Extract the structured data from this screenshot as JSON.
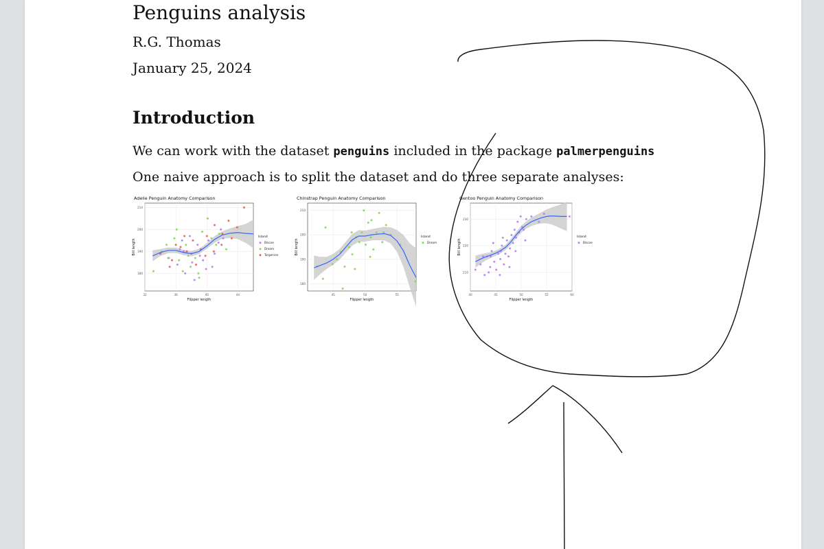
{
  "document": {
    "title": "Penguins analysis",
    "author": "R.G. Thomas",
    "date": "January 25, 2024",
    "section_heading": "Introduction",
    "paragraph1": {
      "before": "We can work with the dataset ",
      "code1": "penguins",
      "middle": " included in the package ",
      "code2": "palmerpenguins"
    },
    "paragraph2": "One naive approach is to split the dataset and do three separate analyses:"
  },
  "colors": {
    "Biscoe": "#b77ff0",
    "Dream": "#7ed957",
    "Torgersen": "#e8604c",
    "smooth_line": "#3366ff",
    "ribbon": "#cccccc",
    "annotation_ink": "#111111"
  },
  "chart_data": [
    {
      "type": "scatter",
      "title": "Adelie  Penguin Anatomy Comparison",
      "xlabel": "Flipper length",
      "ylabel": "Bill length",
      "xlim": [
        32,
        46
      ],
      "ylim": [
        172,
        212
      ],
      "xticks": [
        32,
        36,
        40,
        44
      ],
      "yticks": [
        180,
        190,
        200,
        210
      ],
      "grid": true,
      "legend_title": "Island",
      "legend_position": "right",
      "series": [
        {
          "name": "Biscoe",
          "points": [
            [
              35.1,
              187
            ],
            [
              36.5,
              191
            ],
            [
              37.2,
              180
            ],
            [
              38.1,
              185
            ],
            [
              38.8,
              193
            ],
            [
              39.5,
              186
            ],
            [
              40.2,
              195
            ],
            [
              41.0,
              189
            ],
            [
              37.8,
              197
            ],
            [
              36.2,
              184
            ],
            [
              39.9,
              182
            ],
            [
              41.5,
              194
            ],
            [
              38.4,
              177
            ],
            [
              37.0,
              190
            ],
            [
              42.1,
              196
            ],
            [
              39.1,
              188
            ],
            [
              36.8,
              195
            ],
            [
              40.7,
              183
            ],
            [
              38.0,
              189
            ],
            [
              41.8,
              200
            ]
          ]
        },
        {
          "name": "Dream",
          "points": [
            [
              33.1,
              181
            ],
            [
              34.2,
              190
            ],
            [
              35.8,
              196
            ],
            [
              36.4,
              186
            ],
            [
              37.3,
              193
            ],
            [
              38.5,
              187
            ],
            [
              39.4,
              199
            ],
            [
              40.1,
              205
            ],
            [
              41.2,
              193
            ],
            [
              42.5,
              191
            ],
            [
              36.1,
              200
            ],
            [
              37.9,
              183
            ],
            [
              38.9,
              180
            ],
            [
              35.0,
              187
            ],
            [
              40.6,
              196
            ],
            [
              39.0,
              178
            ],
            [
              34.8,
              193
            ],
            [
              41.6,
              198
            ],
            [
              37.6,
              188
            ],
            [
              36.9,
              181
            ]
          ]
        },
        {
          "name": "Torgersen",
          "points": [
            [
              34.0,
              189
            ],
            [
              35.5,
              186
            ],
            [
              36.6,
              192
            ],
            [
              37.4,
              190
            ],
            [
              38.2,
              195
            ],
            [
              39.2,
              191
            ],
            [
              40.0,
              197
            ],
            [
              41.0,
              202
            ],
            [
              42.0,
              198
            ],
            [
              43.2,
              196
            ],
            [
              44.8,
              210
            ],
            [
              38.6,
              184
            ],
            [
              37.1,
              197
            ],
            [
              39.8,
              188
            ],
            [
              36.0,
              193
            ],
            [
              42.8,
              204
            ],
            [
              40.9,
              190
            ],
            [
              35.2,
              183
            ],
            [
              41.9,
              193
            ],
            [
              43.9,
              201
            ]
          ]
        }
      ],
      "smooth": [
        [
          33,
          188
        ],
        [
          34,
          189.5
        ],
        [
          35,
          190.5
        ],
        [
          36,
          190.5
        ],
        [
          37,
          189.5
        ],
        [
          38,
          189
        ],
        [
          39,
          190
        ],
        [
          40,
          192.5
        ],
        [
          41,
          195.5
        ],
        [
          42,
          197.5
        ],
        [
          43,
          198.3
        ],
        [
          44,
          198.6
        ],
        [
          45,
          198.2
        ],
        [
          46,
          198
        ]
      ],
      "band": [
        2.5,
        1.6,
        1.3,
        1.2,
        1.2,
        1.2,
        1.2,
        1.3,
        1.5,
        1.7,
        2.2,
        3.0,
        4.3,
        6.5
      ]
    },
    {
      "type": "scatter",
      "title": "Chinstrap  Penguin Anatomy Comparison",
      "xlabel": "Flipper length",
      "ylabel": "Bill length",
      "xlim": [
        41,
        58
      ],
      "ylim": [
        177,
        213
      ],
      "xticks": [
        45,
        50,
        55
      ],
      "yticks": [
        180,
        190,
        200,
        210
      ],
      "grid": true,
      "legend_title": "Island",
      "legend_position": "right",
      "series": [
        {
          "name": "Dream",
          "points": [
            [
              42.5,
              187
            ],
            [
              43.4,
              182
            ],
            [
              44.9,
              188
            ],
            [
              45.6,
              190
            ],
            [
              46.2,
              193
            ],
            [
              46.8,
              187
            ],
            [
              47.5,
              195
            ],
            [
              48.0,
              192
            ],
            [
              48.6,
              199
            ],
            [
              49.1,
              197
            ],
            [
              49.5,
              201
            ],
            [
              50.1,
              196
            ],
            [
              50.5,
              205
            ],
            [
              50.9,
              199
            ],
            [
              51.3,
              194
            ],
            [
              51.8,
              201
            ],
            [
              52.2,
              209
            ],
            [
              52.7,
              197
            ],
            [
              53.3,
              204
            ],
            [
              54.0,
              200
            ],
            [
              49.8,
              210
            ],
            [
              46.5,
              178
            ],
            [
              43.8,
              203
            ],
            [
              55.5,
              196
            ],
            [
              57.9,
              181
            ],
            [
              47.9,
              201
            ],
            [
              50.8,
              191
            ],
            [
              48.4,
              186
            ],
            [
              51.0,
              206
            ],
            [
              52.9,
              201
            ]
          ]
        }
      ],
      "smooth": [
        [
          42,
          186.5
        ],
        [
          43,
          187.5
        ],
        [
          44,
          188.5
        ],
        [
          45,
          190
        ],
        [
          46,
          192
        ],
        [
          47,
          195
        ],
        [
          48,
          198
        ],
        [
          49,
          199.5
        ],
        [
          50,
          199.5
        ],
        [
          51,
          200
        ],
        [
          52,
          200.3
        ],
        [
          53,
          200.5
        ],
        [
          54,
          199.8
        ],
        [
          55,
          197.5
        ],
        [
          56,
          193.5
        ],
        [
          57,
          187.5
        ],
        [
          58,
          182.5
        ]
      ],
      "band": [
        5,
        3.5,
        2.5,
        2.2,
        2.2,
        2.3,
        2.4,
        2.4,
        2.3,
        2.3,
        2.5,
        2.8,
        3.3,
        4.5,
        6.5,
        9,
        12
      ]
    },
    {
      "type": "scatter",
      "title": "Gentoo  Penguin Anatomy Comparison",
      "xlabel": "Flipper length",
      "ylabel": "Bill length",
      "xlim": [
        40,
        60
      ],
      "ylim": [
        203,
        236
      ],
      "xticks": [
        40,
        45,
        50,
        55,
        60
      ],
      "yticks": [
        210,
        220,
        230
      ],
      "grid": true,
      "legend_title": "Island",
      "legend_position": "right",
      "series": [
        {
          "name": "Biscoe",
          "points": [
            [
              41.0,
              211
            ],
            [
              42.0,
              213
            ],
            [
              42.8,
              209
            ],
            [
              43.3,
              216
            ],
            [
              43.9,
              212
            ],
            [
              44.2,
              218
            ],
            [
              44.7,
              214
            ],
            [
              45.1,
              211
            ],
            [
              45.5,
              217
            ],
            [
              45.9,
              215
            ],
            [
              46.2,
              220
            ],
            [
              46.6,
              213
            ],
            [
              46.9,
              217
            ],
            [
              47.2,
              222
            ],
            [
              47.5,
              216
            ],
            [
              47.8,
              219
            ],
            [
              48.1,
              224
            ],
            [
              48.4,
              221
            ],
            [
              48.7,
              226
            ],
            [
              49.0,
              223
            ],
            [
              49.3,
              229
            ],
            [
              49.6,
              225
            ],
            [
              49.9,
              231
            ],
            [
              50.2,
              227
            ],
            [
              50.5,
              226
            ],
            [
              51.0,
              230
            ],
            [
              52.0,
              231
            ],
            [
              53.5,
              229
            ],
            [
              54.5,
              232
            ],
            [
              59.5,
              231
            ],
            [
              44.5,
              221
            ],
            [
              45.8,
              209
            ],
            [
              46.4,
              223
            ],
            [
              47.7,
              212
            ],
            [
              42.5,
              216
            ],
            [
              43.6,
              210
            ],
            [
              48.9,
              218
            ],
            [
              50.8,
              222
            ],
            [
              44.0,
              216
            ],
            [
              46.0,
              218
            ]
          ]
        }
      ],
      "smooth": [
        [
          41,
          214
        ],
        [
          42,
          215
        ],
        [
          43,
          215.8
        ],
        [
          44,
          216.5
        ],
        [
          45,
          217.2
        ],
        [
          46,
          218.2
        ],
        [
          47,
          219.5
        ],
        [
          48,
          221.5
        ],
        [
          49,
          224
        ],
        [
          50,
          226.2
        ],
        [
          51,
          227.8
        ],
        [
          52,
          229
        ],
        [
          53,
          229.8
        ],
        [
          54,
          230.5
        ],
        [
          55,
          231
        ],
        [
          56,
          231.2
        ],
        [
          57,
          231.1
        ],
        [
          58,
          231
        ],
        [
          59,
          231
        ]
      ],
      "band": [
        2.3,
        1.8,
        1.4,
        1.1,
        1,
        1,
        1,
        1.1,
        1.2,
        1.3,
        1.4,
        1.6,
        1.8,
        2.1,
        2.6,
        3.2,
        3.9,
        4.7,
        5.5
      ]
    }
  ]
}
